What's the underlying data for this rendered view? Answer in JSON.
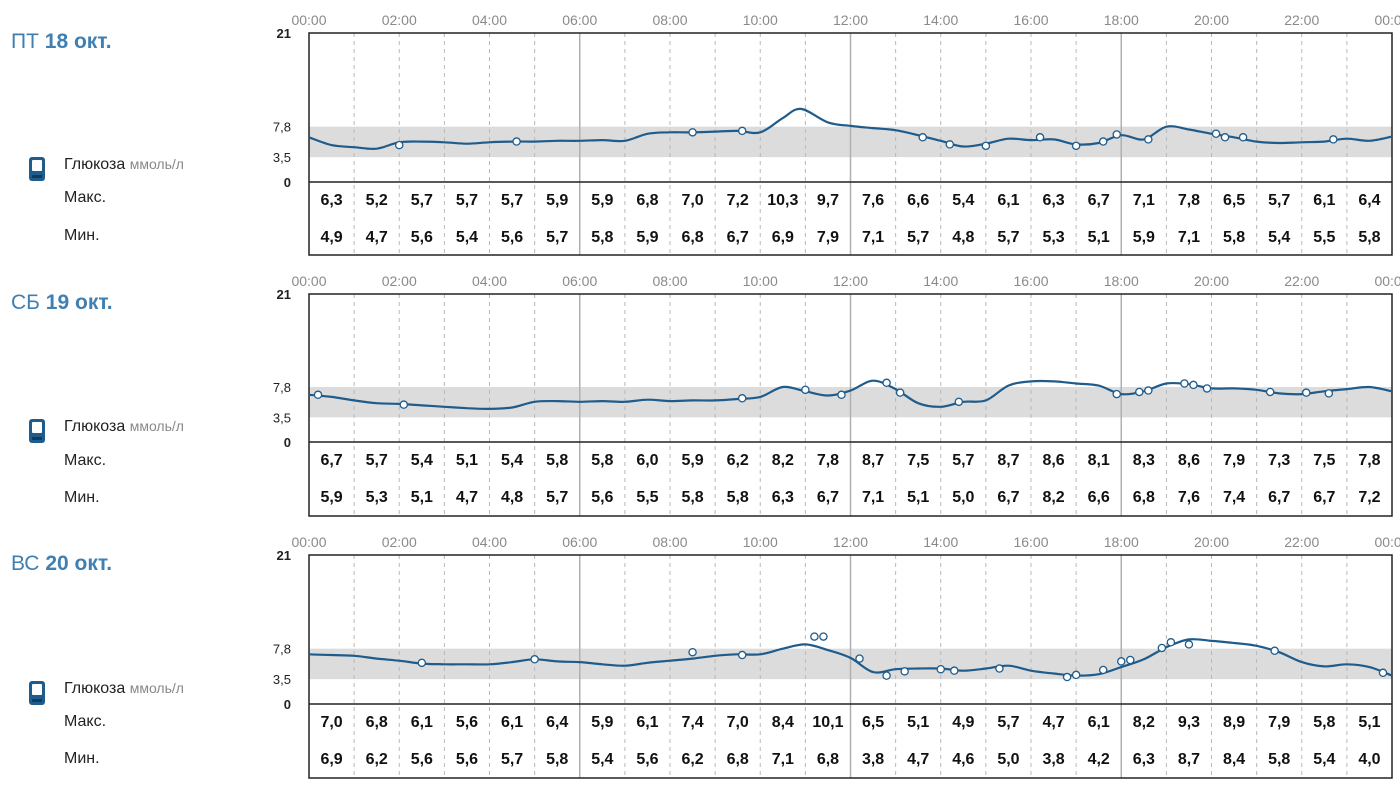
{
  "colors": {
    "line": "#1f5c8c",
    "range_band": "#dcdcdc",
    "title": "#3f7fb1",
    "marker_fill": "#ffffff"
  },
  "icons": {
    "meter": "glucose-meter-icon"
  },
  "legend": {
    "label": "Глюкоза",
    "unit": "ммоль/л",
    "max_label": "Макс.",
    "min_label": "Мин."
  },
  "chart_data": [
    {
      "type": "line",
      "day_prefix": "ПТ",
      "day_number": "18",
      "day_month": "окт.",
      "x_ticks": [
        "00:00",
        "02:00",
        "04:00",
        "06:00",
        "08:00",
        "10:00",
        "12:00",
        "14:00",
        "16:00",
        "18:00",
        "20:00",
        "22:00",
        "00:00"
      ],
      "y_ticks": [
        "21",
        "7,8",
        "3,5",
        "0"
      ],
      "ylim": [
        0,
        21
      ],
      "target_range": [
        3.5,
        7.8
      ],
      "series": [
        {
          "x": [
            0,
            0.5,
            1,
            1.5,
            2,
            2.5,
            3,
            3.5,
            4,
            4.5,
            5,
            5.5,
            6,
            6.5,
            7,
            7.5,
            8,
            8.5,
            9,
            9.5,
            10,
            10.5,
            10.9,
            11.5,
            12,
            12.5,
            13,
            13.5,
            14,
            14.5,
            15,
            15.5,
            16,
            16.5,
            17,
            17.5,
            18,
            18.5,
            19,
            19.5,
            20,
            20.5,
            21,
            21.5,
            22,
            22.5,
            23,
            23.5,
            24
          ],
          "y": [
            6.3,
            5.2,
            4.9,
            4.7,
            5.6,
            5.7,
            5.6,
            5.4,
            5.6,
            5.7,
            5.7,
            5.8,
            5.8,
            5.9,
            5.8,
            6.8,
            7.0,
            7.0,
            7.1,
            7.2,
            7.0,
            9.0,
            10.3,
            8.4,
            7.9,
            7.6,
            7.3,
            6.6,
            5.8,
            5.0,
            5.4,
            6.1,
            5.9,
            6.0,
            5.3,
            5.5,
            6.6,
            6.0,
            7.8,
            7.4,
            6.8,
            6.3,
            5.7,
            5.5,
            5.6,
            5.7,
            6.1,
            5.8,
            6.4
          ]
        }
      ],
      "markers": [
        {
          "x": 2,
          "y": 5.2
        },
        {
          "x": 4.6,
          "y": 5.7
        },
        {
          "x": 8.5,
          "y": 7.0
        },
        {
          "x": 9.6,
          "y": 7.2
        },
        {
          "x": 13.6,
          "y": 6.3
        },
        {
          "x": 14.2,
          "y": 5.3
        },
        {
          "x": 15,
          "y": 5.1
        },
        {
          "x": 16.2,
          "y": 6.3
        },
        {
          "x": 17,
          "y": 5.1
        },
        {
          "x": 17.6,
          "y": 5.7
        },
        {
          "x": 17.9,
          "y": 6.7
        },
        {
          "x": 18.6,
          "y": 6.0
        },
        {
          "x": 20.1,
          "y": 6.8
        },
        {
          "x": 20.3,
          "y": 6.3
        },
        {
          "x": 20.7,
          "y": 6.3
        },
        {
          "x": 22.7,
          "y": 6.0
        }
      ],
      "max": [
        "6,3",
        "5,2",
        "5,7",
        "5,7",
        "5,7",
        "5,9",
        "5,9",
        "6,8",
        "7,0",
        "7,2",
        "10,3",
        "9,7",
        "7,6",
        "6,6",
        "5,4",
        "6,1",
        "6,3",
        "6,7",
        "7,1",
        "7,8",
        "6,5",
        "5,7",
        "6,1",
        "6,4"
      ],
      "min": [
        "4,9",
        "4,7",
        "5,6",
        "5,4",
        "5,6",
        "5,7",
        "5,8",
        "5,9",
        "6,8",
        "6,7",
        "6,9",
        "7,9",
        "7,1",
        "5,7",
        "4,8",
        "5,7",
        "5,3",
        "5,1",
        "5,9",
        "7,1",
        "5,8",
        "5,4",
        "5,5",
        "5,8"
      ]
    },
    {
      "type": "line",
      "day_prefix": "СБ",
      "day_number": "19",
      "day_month": "окт.",
      "x_ticks": [
        "00:00",
        "02:00",
        "04:00",
        "06:00",
        "08:00",
        "10:00",
        "12:00",
        "14:00",
        "16:00",
        "18:00",
        "20:00",
        "22:00",
        "00:00"
      ],
      "y_ticks": [
        "21",
        "7,8",
        "3,5",
        "0"
      ],
      "ylim": [
        0,
        21
      ],
      "target_range": [
        3.5,
        7.8
      ],
      "series": [
        {
          "x": [
            0,
            0.5,
            1,
            1.5,
            2,
            2.5,
            3,
            3.5,
            4,
            4.5,
            5,
            5.5,
            6,
            6.5,
            7,
            7.5,
            8,
            8.5,
            9,
            9.5,
            10,
            10.5,
            11,
            11.5,
            12,
            12.5,
            13,
            13.5,
            14,
            14.5,
            15,
            15.5,
            16,
            16.5,
            17,
            17.5,
            18,
            18.5,
            19,
            19.5,
            20,
            20.5,
            21,
            21.5,
            22,
            22.5,
            23,
            23.5,
            24
          ],
          "y": [
            6.7,
            6.4,
            5.9,
            5.5,
            5.4,
            5.2,
            5.0,
            4.8,
            4.7,
            4.9,
            5.7,
            5.8,
            5.7,
            5.8,
            5.7,
            6.0,
            5.8,
            5.9,
            5.9,
            6.1,
            6.4,
            7.8,
            7.2,
            6.6,
            7.3,
            8.7,
            7.5,
            5.5,
            5.0,
            5.7,
            5.9,
            8.0,
            8.6,
            8.6,
            8.3,
            8.0,
            6.8,
            7.2,
            8.3,
            8.2,
            7.6,
            7.6,
            7.4,
            6.9,
            6.8,
            7.2,
            7.5,
            7.8,
            7.2
          ]
        }
      ],
      "markers": [
        {
          "x": 0.2,
          "y": 6.7
        },
        {
          "x": 2.1,
          "y": 5.3
        },
        {
          "x": 9.6,
          "y": 6.2
        },
        {
          "x": 11,
          "y": 7.4
        },
        {
          "x": 11.8,
          "y": 6.7
        },
        {
          "x": 12.8,
          "y": 8.4
        },
        {
          "x": 13.1,
          "y": 7.0
        },
        {
          "x": 14.4,
          "y": 5.7
        },
        {
          "x": 17.9,
          "y": 6.8
        },
        {
          "x": 18.4,
          "y": 7.1
        },
        {
          "x": 18.6,
          "y": 7.3
        },
        {
          "x": 19.4,
          "y": 8.3
        },
        {
          "x": 19.6,
          "y": 8.1
        },
        {
          "x": 19.9,
          "y": 7.6
        },
        {
          "x": 21.3,
          "y": 7.1
        },
        {
          "x": 22.1,
          "y": 7.0
        },
        {
          "x": 22.6,
          "y": 6.9
        }
      ],
      "max": [
        "6,7",
        "5,7",
        "5,4",
        "5,1",
        "5,4",
        "5,8",
        "5,8",
        "6,0",
        "5,9",
        "6,2",
        "8,2",
        "7,8",
        "8,7",
        "7,5",
        "5,7",
        "8,7",
        "8,6",
        "8,1",
        "8,3",
        "8,6",
        "7,9",
        "7,3",
        "7,5",
        "7,8"
      ],
      "min": [
        "5,9",
        "5,3",
        "5,1",
        "4,7",
        "4,8",
        "5,7",
        "5,6",
        "5,5",
        "5,8",
        "5,8",
        "6,3",
        "6,7",
        "7,1",
        "5,1",
        "5,0",
        "6,7",
        "8,2",
        "6,6",
        "6,8",
        "7,6",
        "7,4",
        "6,7",
        "6,7",
        "7,2"
      ]
    },
    {
      "type": "line",
      "day_prefix": "ВС",
      "day_number": "20",
      "day_month": "окт.",
      "x_ticks": [
        "00:00",
        "02:00",
        "04:00",
        "06:00",
        "08:00",
        "10:00",
        "12:00",
        "14:00",
        "16:00",
        "18:00",
        "20:00",
        "22:00",
        "00:00"
      ],
      "y_ticks": [
        "21",
        "7,8",
        "3,5",
        "0"
      ],
      "ylim": [
        0,
        21
      ],
      "target_range": [
        3.5,
        7.8
      ],
      "series": [
        {
          "x": [
            0,
            0.5,
            1,
            1.5,
            2,
            2.5,
            3,
            3.5,
            4,
            4.5,
            5,
            5.5,
            6,
            6.5,
            7,
            7.5,
            8,
            8.5,
            9,
            9.5,
            10,
            10.5,
            11,
            11.5,
            12,
            12.5,
            13,
            13.5,
            14,
            14.5,
            15,
            15.5,
            16,
            16.5,
            17,
            17.5,
            18,
            18.5,
            19,
            19.5,
            20,
            20.5,
            21,
            21.5,
            22,
            22.5,
            23,
            23.5,
            24
          ],
          "y": [
            7.0,
            6.9,
            6.8,
            6.4,
            6.1,
            5.7,
            5.6,
            5.6,
            5.6,
            5.9,
            6.3,
            6.0,
            5.9,
            5.6,
            5.4,
            5.8,
            6.1,
            6.4,
            6.8,
            7.0,
            7.0,
            7.8,
            8.4,
            7.6,
            6.5,
            4.5,
            4.9,
            5.0,
            5.0,
            4.7,
            5.0,
            5.4,
            4.7,
            4.3,
            4.0,
            4.2,
            5.2,
            6.3,
            8.0,
            9.1,
            8.9,
            8.6,
            8.2,
            7.3,
            5.9,
            5.3,
            5.6,
            5.2,
            4.0
          ]
        }
      ],
      "markers": [
        {
          "x": 2.5,
          "y": 5.8
        },
        {
          "x": 5,
          "y": 6.3
        },
        {
          "x": 8.5,
          "y": 7.3
        },
        {
          "x": 9.6,
          "y": 6.9
        },
        {
          "x": 11.2,
          "y": 9.5
        },
        {
          "x": 11.4,
          "y": 9.5
        },
        {
          "x": 12.2,
          "y": 6.4
        },
        {
          "x": 12.8,
          "y": 4.0
        },
        {
          "x": 13.2,
          "y": 4.6
        },
        {
          "x": 14,
          "y": 4.9
        },
        {
          "x": 14.3,
          "y": 4.7
        },
        {
          "x": 15.3,
          "y": 5.0
        },
        {
          "x": 16.8,
          "y": 3.8
        },
        {
          "x": 17,
          "y": 4.1
        },
        {
          "x": 17.6,
          "y": 4.8
        },
        {
          "x": 18,
          "y": 6.0
        },
        {
          "x": 18.2,
          "y": 6.2
        },
        {
          "x": 18.9,
          "y": 7.9
        },
        {
          "x": 19.1,
          "y": 8.7
        },
        {
          "x": 19.5,
          "y": 8.4
        },
        {
          "x": 21.4,
          "y": 7.5
        },
        {
          "x": 23.8,
          "y": 4.4
        }
      ],
      "max": [
        "7,0",
        "6,8",
        "6,1",
        "5,6",
        "6,1",
        "6,4",
        "5,9",
        "6,1",
        "7,4",
        "7,0",
        "8,4",
        "10,1",
        "6,5",
        "5,1",
        "4,9",
        "5,7",
        "4,7",
        "6,1",
        "8,2",
        "9,3",
        "8,9",
        "7,9",
        "5,8",
        "5,1"
      ],
      "min": [
        "6,9",
        "6,2",
        "5,6",
        "5,6",
        "5,7",
        "5,8",
        "5,4",
        "5,6",
        "6,2",
        "6,8",
        "7,1",
        "6,8",
        "3,8",
        "4,7",
        "4,6",
        "5,0",
        "3,8",
        "4,2",
        "6,3",
        "8,7",
        "8,4",
        "5,8",
        "5,4",
        "4,0"
      ]
    }
  ]
}
